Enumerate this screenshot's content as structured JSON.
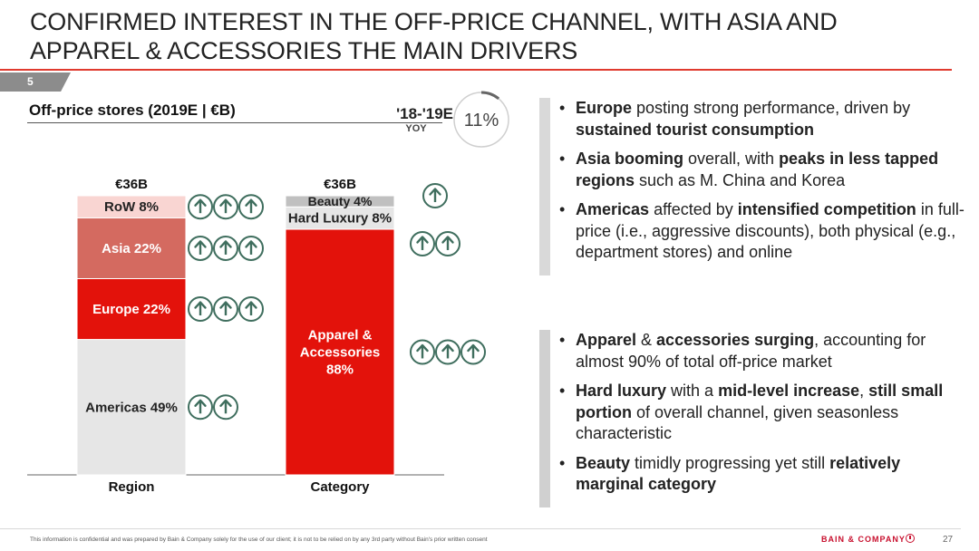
{
  "slide": {
    "title_line1": "CONFIRMED INTEREST IN THE OFF-PRICE CHANNEL, WITH ASIA AND",
    "title_line2": "APPAREL & ACCESSORIES THE MAIN DRIVERS",
    "section_number": "5",
    "page_number": "27",
    "footnote": "This information is confidential and was prepared by Bain & Company solely for the use of our client; it is not to be relied on by any 3rd party without Bain's prior written consent",
    "brand": "BAIN & COMPANY"
  },
  "chart_header": {
    "title": "Off-price stores (2019E | €B)",
    "growth_label": "'18-'19E",
    "growth_sub": "YOY",
    "growth_value": "11%",
    "growth_fraction": 0.11
  },
  "chart_data": {
    "type": "bar",
    "stacked": "percent",
    "title": "Off-price stores (2019E | €B)",
    "categories": [
      "Region",
      "Category"
    ],
    "totals": [
      "€36B",
      "€36B"
    ],
    "bars": [
      {
        "category": "Region",
        "total_label": "€36B",
        "segments": [
          {
            "label": "Americas 49%",
            "value": 49,
            "color": "#e6e6e6",
            "text_color": "#222222",
            "arrows": 2
          },
          {
            "label": "Europe 22%",
            "value": 22,
            "color": "#e3120b",
            "text_color": "#ffffff",
            "arrows": 3
          },
          {
            "label": "Asia 22%",
            "value": 22,
            "color": "#d46a60",
            "text_color": "#ffffff",
            "arrows": 3
          },
          {
            "label": "RoW 8%",
            "value": 8,
            "color": "#f9d5d2",
            "text_color": "#222222",
            "arrows": 3
          }
        ]
      },
      {
        "category": "Category",
        "total_label": "€36B",
        "segments": [
          {
            "label": "Apparel & Accessories 88%",
            "lines": [
              "Apparel &",
              "Accessories",
              "88%"
            ],
            "value": 88,
            "color": "#e3120b",
            "text_color": "#ffffff",
            "arrows": 3
          },
          {
            "label": "Hard Luxury 8%",
            "value": 8,
            "color": "#e6e6e6",
            "text_color": "#222222",
            "arrows": 2
          },
          {
            "label": "Beauty 4%",
            "value": 4,
            "color": "#c0c0c0",
            "text_color": "#222222",
            "arrows": 1
          }
        ]
      }
    ],
    "arrow_color": "#3f6e5e"
  },
  "bullets_top": [
    [
      {
        "t": "Europe",
        "b": true
      },
      {
        "t": " posting strong performance, driven by ",
        "b": false
      },
      {
        "t": "sustained tourist consumption",
        "b": true
      }
    ],
    [
      {
        "t": "Asia booming",
        "b": true
      },
      {
        "t": " overall, with ",
        "b": false
      },
      {
        "t": "peaks in less tapped regions",
        "b": true
      },
      {
        "t": " such as M. China and Korea",
        "b": false
      }
    ],
    [
      {
        "t": "Americas",
        "b": true
      },
      {
        "t": " affected by ",
        "b": false
      },
      {
        "t": "intensified competition",
        "b": true
      },
      {
        "t": " in full-price (i.e., aggressive discounts), both physical (e.g., department stores) and online",
        "b": false
      }
    ]
  ],
  "bullets_bottom": [
    [
      {
        "t": "Apparel",
        "b": true
      },
      {
        "t": " & ",
        "b": false
      },
      {
        "t": "accessories surging",
        "b": true
      },
      {
        "t": ", accounting for almost 90% of total off-price market",
        "b": false
      }
    ],
    [
      {
        "t": "Hard luxury",
        "b": true
      },
      {
        "t": " with a ",
        "b": false
      },
      {
        "t": "mid-level increase",
        "b": true
      },
      {
        "t": ", ",
        "b": false
      },
      {
        "t": "still small portion",
        "b": true
      },
      {
        "t": " of overall channel, given seasonless characteristic",
        "b": false
      }
    ],
    [
      {
        "t": "Beauty",
        "b": true
      },
      {
        "t": " timidly progressing yet still ",
        "b": false
      },
      {
        "t": "relatively marginal category",
        "b": true
      }
    ]
  ]
}
